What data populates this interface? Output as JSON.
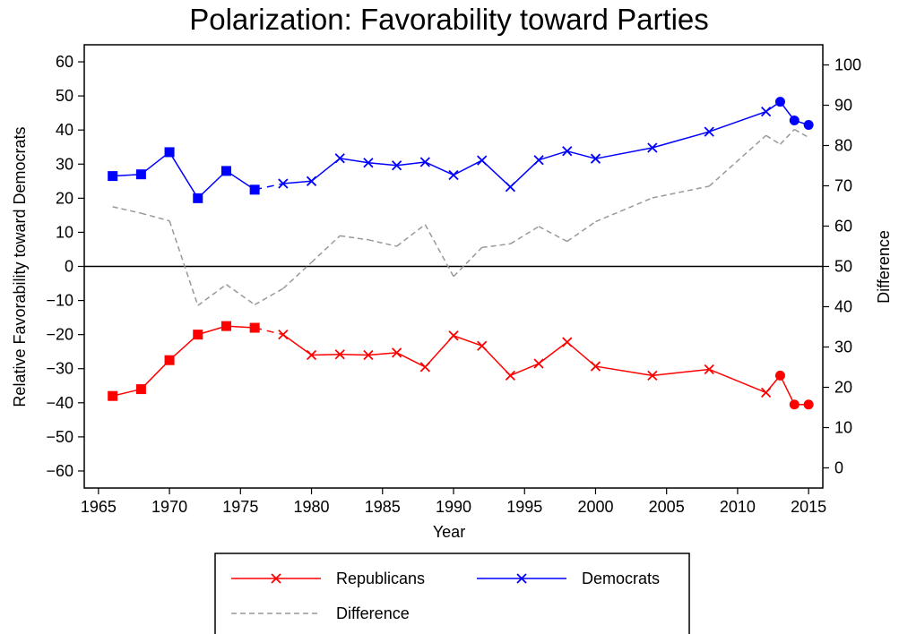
{
  "chart_data": {
    "type": "line",
    "title": "Polarization: Favorability toward Parties",
    "xlabel": "Year",
    "ylabel": "Relative Favorability toward Democrats",
    "y2label": "Difference",
    "xlim": [
      1964,
      2016
    ],
    "ylim": [
      -65,
      65
    ],
    "y2lim": [
      -5,
      105
    ],
    "x_ticks": [
      1965,
      1970,
      1975,
      1980,
      1985,
      1990,
      1995,
      2000,
      2005,
      2010,
      2015
    ],
    "y_ticks": [
      60,
      50,
      40,
      30,
      20,
      10,
      0,
      -10,
      -20,
      -30,
      -40,
      -50,
      -60
    ],
    "y2_ticks": [
      100,
      90,
      80,
      70,
      60,
      50,
      40,
      30,
      20,
      10,
      0
    ],
    "zero_line": true,
    "grid": false,
    "legend_position": "bottom",
    "series": [
      {
        "name": "Republicans",
        "color": "#ff0000",
        "axis": "left",
        "style": "solid",
        "points": [
          {
            "x": 1966,
            "y": -38,
            "marker": "square"
          },
          {
            "x": 1968,
            "y": -36,
            "marker": "square"
          },
          {
            "x": 1970,
            "y": -27.5,
            "marker": "square"
          },
          {
            "x": 1972,
            "y": -20,
            "marker": "square"
          },
          {
            "x": 1974,
            "y": -17.5,
            "marker": "square"
          },
          {
            "x": 1976,
            "y": -18,
            "marker": "square"
          },
          {
            "x": 1978,
            "y": -20,
            "marker": "x"
          },
          {
            "x": 1980,
            "y": -26,
            "marker": "x"
          },
          {
            "x": 1982,
            "y": -25.8,
            "marker": "x"
          },
          {
            "x": 1984,
            "y": -26,
            "marker": "x"
          },
          {
            "x": 1986,
            "y": -25.3,
            "marker": "x"
          },
          {
            "x": 1988,
            "y": -29.5,
            "marker": "x"
          },
          {
            "x": 1990,
            "y": -20.3,
            "marker": "x"
          },
          {
            "x": 1992,
            "y": -23.3,
            "marker": "x"
          },
          {
            "x": 1994,
            "y": -32,
            "marker": "x"
          },
          {
            "x": 1996,
            "y": -28.5,
            "marker": "x"
          },
          {
            "x": 1998,
            "y": -22.2,
            "marker": "x"
          },
          {
            "x": 2000,
            "y": -29.3,
            "marker": "x"
          },
          {
            "x": 2004,
            "y": -32,
            "marker": "x"
          },
          {
            "x": 2008,
            "y": -30.2,
            "marker": "x"
          },
          {
            "x": 2012,
            "y": -37,
            "marker": "x"
          },
          {
            "x": 2013,
            "y": -32,
            "marker": "circle"
          },
          {
            "x": 2014,
            "y": -40.5,
            "marker": "circle"
          },
          {
            "x": 2015,
            "y": -40.5,
            "marker": "circle"
          }
        ],
        "dashed_segments": [
          [
            1976,
            1978
          ]
        ]
      },
      {
        "name": "Democrats",
        "color": "#0000ff",
        "axis": "left",
        "style": "solid",
        "points": [
          {
            "x": 1966,
            "y": 26.5,
            "marker": "square"
          },
          {
            "x": 1968,
            "y": 27,
            "marker": "square"
          },
          {
            "x": 1970,
            "y": 33.5,
            "marker": "square"
          },
          {
            "x": 1972,
            "y": 20,
            "marker": "square"
          },
          {
            "x": 1974,
            "y": 28,
            "marker": "square"
          },
          {
            "x": 1976,
            "y": 22.5,
            "marker": "square"
          },
          {
            "x": 1978,
            "y": 24.3,
            "marker": "x"
          },
          {
            "x": 1980,
            "y": 25,
            "marker": "x"
          },
          {
            "x": 1982,
            "y": 31.7,
            "marker": "x"
          },
          {
            "x": 1984,
            "y": 30.4,
            "marker": "x"
          },
          {
            "x": 1986,
            "y": 29.6,
            "marker": "x"
          },
          {
            "x": 1988,
            "y": 30.6,
            "marker": "x"
          },
          {
            "x": 1990,
            "y": 26.8,
            "marker": "x"
          },
          {
            "x": 1992,
            "y": 31.1,
            "marker": "x"
          },
          {
            "x": 1994,
            "y": 23.3,
            "marker": "x"
          },
          {
            "x": 1996,
            "y": 31.2,
            "marker": "x"
          },
          {
            "x": 1998,
            "y": 33.8,
            "marker": "x"
          },
          {
            "x": 2000,
            "y": 31.6,
            "marker": "x"
          },
          {
            "x": 2004,
            "y": 34.8,
            "marker": "x"
          },
          {
            "x": 2008,
            "y": 39.5,
            "marker": "x"
          },
          {
            "x": 2012,
            "y": 45.4,
            "marker": "x"
          },
          {
            "x": 2013,
            "y": 48.3,
            "marker": "circle"
          },
          {
            "x": 2014,
            "y": 42.8,
            "marker": "circle"
          },
          {
            "x": 2015,
            "y": 41.5,
            "marker": "circle"
          }
        ],
        "dashed_segments": [
          [
            1976,
            1978
          ]
        ]
      },
      {
        "name": "Difference",
        "color": "#999999",
        "axis": "right",
        "style": "dashed",
        "points": [
          {
            "x": 1966,
            "y": 64.8
          },
          {
            "x": 1968,
            "y": 63.2
          },
          {
            "x": 1970,
            "y": 61.3
          },
          {
            "x": 1972,
            "y": 40.3
          },
          {
            "x": 1974,
            "y": 45.5
          },
          {
            "x": 1976,
            "y": 40.5
          },
          {
            "x": 1978,
            "y": 44.5
          },
          {
            "x": 1980,
            "y": 51.0
          },
          {
            "x": 1982,
            "y": 57.6
          },
          {
            "x": 1984,
            "y": 56.6
          },
          {
            "x": 1986,
            "y": 55.0
          },
          {
            "x": 1988,
            "y": 60.4
          },
          {
            "x": 1990,
            "y": 47.5
          },
          {
            "x": 1992,
            "y": 54.7
          },
          {
            "x": 1994,
            "y": 55.6
          },
          {
            "x": 1996,
            "y": 59.9
          },
          {
            "x": 1998,
            "y": 56.2
          },
          {
            "x": 2000,
            "y": 61.1
          },
          {
            "x": 2004,
            "y": 67.0
          },
          {
            "x": 2008,
            "y": 69.9
          },
          {
            "x": 2012,
            "y": 82.5
          },
          {
            "x": 2013,
            "y": 80.3
          },
          {
            "x": 2014,
            "y": 84.0
          },
          {
            "x": 2015,
            "y": 82.0
          }
        ]
      }
    ]
  }
}
